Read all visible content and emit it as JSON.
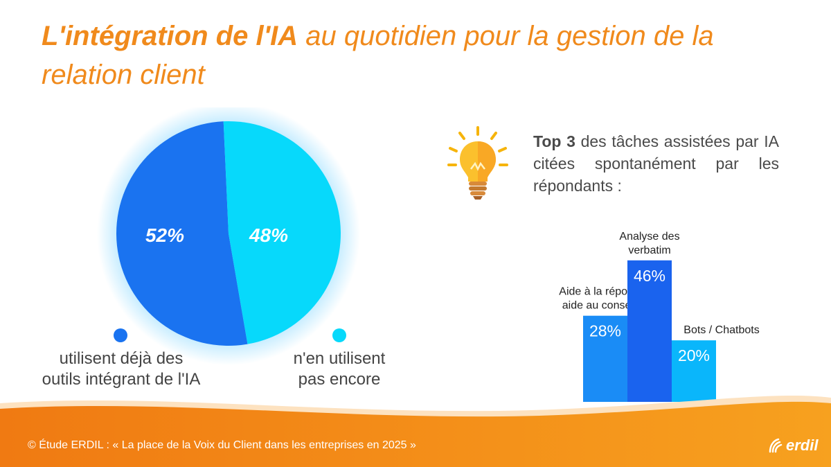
{
  "title": {
    "bold": "L'intégration de l'IA",
    "light": " au quotidien pour la gestion de la relation client"
  },
  "chart_data": [
    {
      "type": "pie",
      "slices": [
        {
          "label": "utilisent déjà des outils intégrant de l'IA",
          "value": 52,
          "display": "52%",
          "color": "#1a73f0"
        },
        {
          "label": "n'en utilisent pas encore",
          "value": 48,
          "display": "48%",
          "color": "#07d9fb"
        }
      ]
    },
    {
      "type": "bar",
      "categories": [
        "Aide à la réponse / aide au conseiller",
        "Analyse des verbatim",
        "Bots / Chatbots"
      ],
      "category_lines": [
        [
          "Aide à la réponse /",
          "aide au conseiller"
        ],
        [
          "Analyse des",
          "verbatim"
        ],
        [
          "Bots / Chatbots"
        ]
      ],
      "values": [
        28,
        46,
        20
      ],
      "displays": [
        "28%",
        "46%",
        "20%"
      ],
      "colors": [
        "#1a8cf6",
        "#1a63ee",
        "#0ab6fb"
      ]
    }
  ],
  "legend": {
    "left_line1": "utilisent déjà des",
    "left_line2": "outils intégrant de l'IA",
    "right_line1": "n'en utilisent",
    "right_line2": "pas encore"
  },
  "top3": {
    "bold": "Top 3",
    "text": " des tâches assistées par IA citées spontanément par les répondants :"
  },
  "footer": {
    "source": "© Étude ERDIL : « La place de la Voix du Client dans les entreprises en 2025 »",
    "logo": "erdil"
  },
  "colors": {
    "orange": "#f08a1c",
    "blue": "#1a73f0",
    "cyan": "#07d9fb"
  },
  "icons": {
    "bulb": "lightbulb-icon",
    "logo": "erdil-logo-icon"
  }
}
